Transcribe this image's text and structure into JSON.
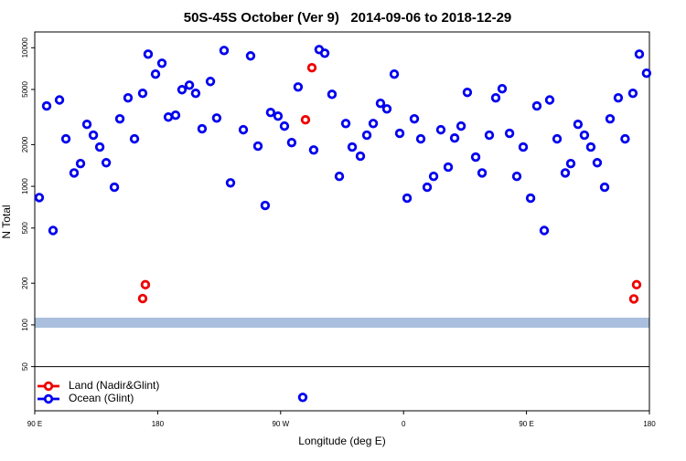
{
  "chart_data": {
    "type": "scatter",
    "title": "50S-45S October (Ver 9)   2014-09-06 to 2018-12-29",
    "xlabel": "Longitude (deg E)",
    "ylabel": "N Total",
    "xlim": [
      90,
      540
    ],
    "xticks": [
      {
        "value": 90,
        "label": "90 E"
      },
      180,
      {
        "value": 270,
        "label": "90 W"
      },
      {
        "value": 360,
        "label": "0"
      },
      {
        "value": 450,
        "label": "90 E"
      },
      {
        "value": 540,
        "label": "180"
      }
    ],
    "ylim": [
      24,
      13000
    ],
    "log_y": true,
    "yticks": [
      50,
      100,
      200,
      500,
      1000,
      2000,
      5000,
      10000
    ],
    "grid": false,
    "legend": "lower left",
    "series": [
      {
        "name": "Land (Nadir&Glint)",
        "color": "#ee0000",
        "x": [
          169.0,
          171.0,
          288.2,
          292.9,
          528.6,
          530.6
        ],
        "values": [
          155,
          195,
          3020,
          7170,
          154,
          195
        ]
      },
      {
        "name": "Ocean (Glint)",
        "color": "#0000ee",
        "x": [
          93.3,
          98.7,
          103.4,
          108.1,
          112.8,
          118.8,
          123.5,
          128.2,
          132.9,
          137.6,
          142.3,
          148.3,
          152.3,
          158.3,
          163.0,
          169.0,
          173.0,
          178.4,
          183.1,
          187.8,
          193.1,
          197.8,
          203.2,
          207.8,
          212.5,
          218.6,
          223.2,
          228.6,
          233.3,
          242.7,
          248.0,
          253.4,
          258.7,
          262.7,
          268.1,
          272.8,
          278.1,
          282.8,
          286.2,
          294.2,
          298.2,
          302.3,
          307.6,
          313.0,
          317.7,
          322.4,
          328.4,
          333.1,
          337.8,
          343.1,
          347.8,
          353.2,
          357.2,
          362.6,
          367.9,
          372.6,
          377.3,
          382.0,
          387.3,
          392.7,
          397.4,
          402.1,
          406.7,
          412.8,
          417.5,
          422.8,
          427.5,
          432.2,
          437.6,
          442.9,
          447.6,
          453.0,
          457.6,
          463.0,
          467.0,
          472.4,
          478.4,
          482.4,
          487.7,
          492.4,
          497.1,
          501.8,
          507.2,
          511.2,
          517.2,
          522.2,
          527.9,
          532.6,
          537.9
        ],
        "values": [
          830,
          3800,
          480,
          4200,
          2200,
          1250,
          1460,
          2800,
          2340,
          1920,
          1480,
          985,
          3070,
          4350,
          2200,
          4690,
          8990,
          6450,
          7730,
          3160,
          3260,
          4980,
          5370,
          4690,
          2600,
          5710,
          3110,
          9550,
          1060,
          2560,
          8730,
          1950,
          728,
          3410,
          3210,
          2720,
          2070,
          5210,
          30,
          1830,
          9700,
          9130,
          4610,
          1180,
          2840,
          1920,
          1650,
          2340,
          2840,
          3970,
          3620,
          6450,
          2410,
          821,
          3070,
          2200,
          985,
          1180,
          2560,
          1375,
          2230,
          2720,
          4760,
          1625,
          1250,
          2340,
          4350,
          5060,
          2410,
          1180,
          1920,
          821,
          3800,
          480,
          4200,
          2200,
          1250,
          1460,
          2800,
          2340,
          1920,
          1480,
          985,
          3070,
          4350,
          2200,
          4690,
          8990,
          6550
        ]
      }
    ]
  }
}
